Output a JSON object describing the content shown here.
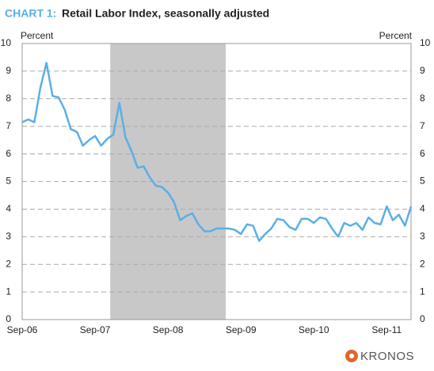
{
  "chart_data": {
    "type": "line",
    "title_prefix": "CHART 1:",
    "title": "Retail Labor Index, seasonally adjusted",
    "y_label": "Percent",
    "y2_label": "Percent",
    "logo": "KRONOS",
    "categories": [
      "Sep-06",
      null,
      null,
      null,
      null,
      null,
      null,
      null,
      null,
      null,
      null,
      null,
      "Sep-07",
      null,
      null,
      null,
      null,
      null,
      null,
      null,
      null,
      null,
      null,
      null,
      "Sep-08",
      null,
      null,
      null,
      null,
      null,
      null,
      null,
      null,
      null,
      null,
      null,
      "Sep-09",
      null,
      null,
      null,
      null,
      null,
      null,
      null,
      null,
      null,
      null,
      null,
      "Sep-10",
      null,
      null,
      null,
      null,
      null,
      null,
      null,
      null,
      null,
      null,
      null,
      "Sep-11",
      null,
      null,
      null,
      null
    ],
    "series": [
      {
        "name": "Retail Labor Index",
        "color": "#5aafe6",
        "values": [
          7.15,
          7.25,
          7.15,
          8.4,
          9.3,
          8.1,
          8.05,
          7.6,
          6.9,
          6.8,
          6.3,
          6.5,
          6.65,
          6.3,
          6.55,
          6.7,
          7.85,
          6.6,
          6.1,
          5.5,
          5.55,
          5.15,
          4.85,
          4.8,
          4.6,
          4.25,
          3.6,
          3.75,
          3.85,
          3.45,
          3.2,
          3.2,
          3.3,
          3.3,
          3.3,
          3.25,
          3.1,
          3.45,
          3.4,
          2.85,
          3.1,
          3.3,
          3.65,
          3.6,
          3.35,
          3.25,
          3.65,
          3.65,
          3.5,
          3.7,
          3.65,
          3.3,
          3.0,
          3.5,
          3.4,
          3.5,
          3.25,
          3.7,
          3.5,
          3.45,
          4.1,
          3.6,
          3.8,
          3.4,
          4.1
        ]
      }
    ],
    "shade": {
      "from": 14.5,
      "to": 33.5,
      "color": "#c8c8c8"
    },
    "ylim": [
      0,
      10
    ],
    "yticks": [
      0,
      1,
      2,
      3,
      4,
      5,
      6,
      7,
      8,
      9,
      10
    ],
    "grid": true
  }
}
